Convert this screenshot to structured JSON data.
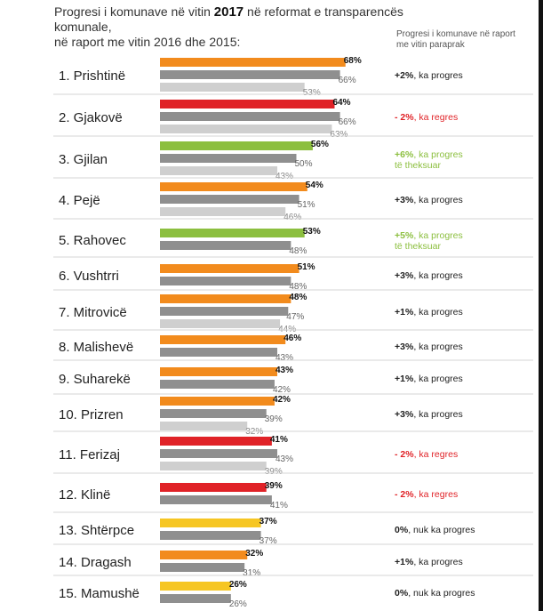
{
  "title": {
    "prefix": "Progresi i komunave në vitin ",
    "year": "2017",
    "suffix": " në reformat e transparencës komunale,",
    "line2": "në raport me vitin 2016 dhe 2015:"
  },
  "side_header": "Progresi i komunave në raport me vitin paraprak",
  "colors": {
    "orange": "#f28b1d",
    "red": "#e02227",
    "green": "#8cbf3f",
    "yellow": "#f6c623",
    "gray2016": "#8f8f8f",
    "gray2015": "#cfcfcf",
    "neutral_text": "#222222"
  },
  "chart_data": {
    "type": "bar",
    "orientation": "horizontal",
    "value_format": "percent",
    "municipalities": [
      {
        "rank_label": "1. Prishtinë",
        "color": "orange",
        "years": [
          {
            "year": "2017",
            "value": 68,
            "label": "68%"
          },
          {
            "year": "2016",
            "value": 66,
            "label": "66%"
          },
          {
            "year": "2015",
            "value": 53,
            "label": "53%"
          }
        ],
        "change": {
          "value": "+2%",
          "text": ", ka progres",
          "tone": "neutral"
        }
      },
      {
        "rank_label": "2. Gjakovë",
        "color": "red",
        "years": [
          {
            "year": "2017",
            "value": 64,
            "label": "64%"
          },
          {
            "year": "2016",
            "value": 66,
            "label": "66%"
          },
          {
            "year": "2015",
            "value": 63,
            "label": "63%"
          }
        ],
        "change": {
          "value": "- 2%",
          "text": ", ka regres",
          "tone": "red"
        }
      },
      {
        "rank_label": "3. Gjilan",
        "color": "green",
        "years": [
          {
            "year": "2017",
            "value": 56,
            "label": "56%"
          },
          {
            "year": "2016",
            "value": 50,
            "label": "50%"
          },
          {
            "year": "2015",
            "value": 43,
            "label": "43%"
          }
        ],
        "change": {
          "value": "+6%",
          "text": ", ka progres",
          "text2": "të theksuar",
          "tone": "green"
        }
      },
      {
        "rank_label": "4. Pejë",
        "color": "orange",
        "years": [
          {
            "year": "2017",
            "value": 54,
            "label": "54%"
          },
          {
            "year": "2016",
            "value": 51,
            "label": "51%"
          },
          {
            "year": "2015",
            "value": 46,
            "label": "46%"
          }
        ],
        "change": {
          "value": "+3%",
          "text": ", ka progres",
          "tone": "neutral"
        }
      },
      {
        "rank_label": "5. Rahovec",
        "color": "green",
        "years": [
          {
            "year": "2017",
            "value": 53,
            "label": "53%"
          },
          {
            "year": "2016",
            "value": 48,
            "label": "48%"
          }
        ],
        "change": {
          "value": "+5%",
          "text": ", ka progres",
          "text2": "të theksuar",
          "tone": "green"
        }
      },
      {
        "rank_label": "6. Vushtrri",
        "color": "orange",
        "years": [
          {
            "year": "2017",
            "value": 51,
            "label": "51%"
          },
          {
            "year": "2016",
            "value": 48,
            "label": "48%"
          }
        ],
        "change": {
          "value": "+3%",
          "text": ", ka progres",
          "tone": "neutral"
        }
      },
      {
        "rank_label": "7. Mitrovicë",
        "color": "orange",
        "years": [
          {
            "year": "2017",
            "value": 48,
            "label": "48%"
          },
          {
            "year": "2016",
            "value": 47,
            "label": "47%"
          },
          {
            "year": "2015",
            "value": 44,
            "label": "44%"
          }
        ],
        "change": {
          "value": "+1%",
          "text": ", ka progres",
          "tone": "neutral"
        }
      },
      {
        "rank_label": "8. Malishevë",
        "color": "orange",
        "years": [
          {
            "year": "2017",
            "value": 46,
            "label": "46%"
          },
          {
            "year": "2016",
            "value": 43,
            "label": "43%"
          }
        ],
        "change": {
          "value": "+3%",
          "text": ", ka progres",
          "tone": "neutral"
        }
      },
      {
        "rank_label": "9. Suharekë",
        "color": "orange",
        "years": [
          {
            "year": "2017",
            "value": 43,
            "label": "43%"
          },
          {
            "year": "2016",
            "value": 42,
            "label": "42%"
          }
        ],
        "change": {
          "value": "+1%",
          "text": ", ka progres",
          "tone": "neutral"
        }
      },
      {
        "rank_label": "10. Prizren",
        "color": "orange",
        "years": [
          {
            "year": "2017",
            "value": 42,
            "label": "42%"
          },
          {
            "year": "2016",
            "value": 39,
            "label": "39%"
          },
          {
            "year": "2015",
            "value": 32,
            "label": "32%"
          }
        ],
        "change": {
          "value": "+3%",
          "text": ", ka progres",
          "tone": "neutral"
        }
      },
      {
        "rank_label": "11. Ferizaj",
        "color": "red",
        "years": [
          {
            "year": "2017",
            "value": 41,
            "label": "41%"
          },
          {
            "year": "2016",
            "value": 43,
            "label": "43%"
          },
          {
            "year": "2015",
            "value": 39,
            "label": "39%"
          }
        ],
        "change": {
          "value": "- 2%",
          "text": ", ka regres",
          "tone": "red"
        }
      },
      {
        "rank_label": "12. Klinë",
        "color": "red",
        "years": [
          {
            "year": "2017",
            "value": 39,
            "label": "39%"
          },
          {
            "year": "2016",
            "value": 41,
            "label": "41%"
          }
        ],
        "change": {
          "value": "- 2%",
          "text": ", ka regres",
          "tone": "red"
        }
      },
      {
        "rank_label": "13. Shtërpce",
        "color": "yellow",
        "years": [
          {
            "year": "2017",
            "value": 37,
            "label": "37%"
          },
          {
            "year": "2016",
            "value": 37,
            "label": "37%"
          }
        ],
        "change": {
          "value": "0%",
          "text": ", nuk ka progres",
          "tone": "neutral"
        }
      },
      {
        "rank_label": "14. Dragash",
        "color": "orange",
        "years": [
          {
            "year": "2017",
            "value": 32,
            "label": "32%"
          },
          {
            "year": "2016",
            "value": 31,
            "label": "31%"
          }
        ],
        "change": {
          "value": "+1%",
          "text": ", ka progres",
          "tone": "neutral"
        }
      },
      {
        "rank_label": "15. Mamushë",
        "color": "yellow",
        "years": [
          {
            "year": "2017",
            "value": 26,
            "label": "26%"
          },
          {
            "year": "2016",
            "value": 26,
            "label": "26%"
          }
        ],
        "change": {
          "value": "0%",
          "text": ", nuk ka progres",
          "tone": "neutral"
        }
      }
    ]
  }
}
